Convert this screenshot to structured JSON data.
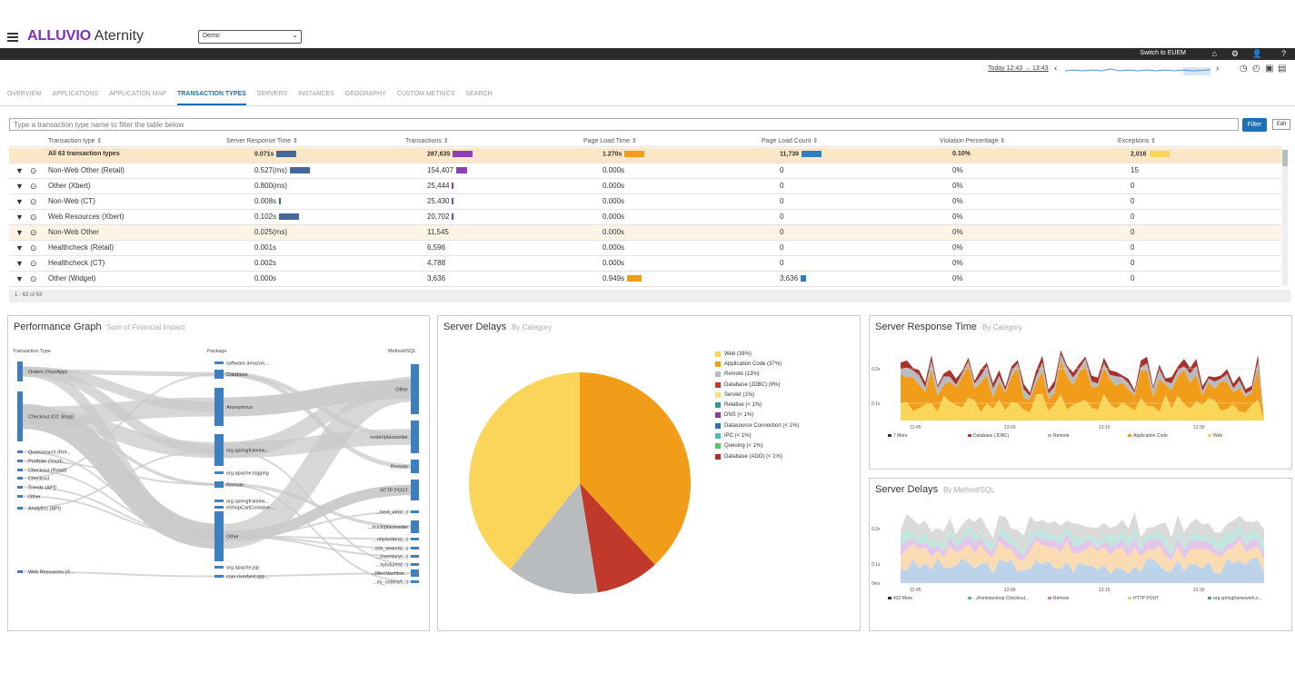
{
  "app": {
    "brand_a": "ALLUVIO",
    "brand_b": "Aternity",
    "env": "Demo"
  },
  "bar": {
    "switch": "Switch to EUEM"
  },
  "timeline": {
    "range": "Today 12:43 → 13:43"
  },
  "tabs": [
    "OVERVIEW",
    "APPLICATIONS",
    "APPLICATION MAP",
    "TRANSACTION TYPES",
    "SERVERS",
    "INSTANCES",
    "GEOGRAPHY",
    "CUSTOM METRICS",
    "SEARCH"
  ],
  "active_tab": "TRANSACTION TYPES",
  "filter": {
    "placeholder": "Type a transaction type name to filter the table below",
    "button": "Filter",
    "edit": "Edit"
  },
  "table": {
    "headers": [
      "Transaction type ⇕",
      "Server Response Time ⇕",
      "Transactions ⇕",
      "Page Load Time ⇕",
      "Page Load Count ⇕",
      "Violation Percentage ⇕",
      "Exceptions ⇕"
    ],
    "total": {
      "name": "All 63 transaction types",
      "srt": "0.071s",
      "tx": "287,635",
      "plt": "1.270s",
      "plc": "11,739",
      "vp": "0.10%",
      "ex": "2,016"
    },
    "rows": [
      {
        "name": "Non-Web Other (Retail)",
        "srt": "0.527(ms)",
        "tx": "154,407",
        "plt": "0.000s",
        "plc": "0",
        "vp": "0%",
        "ex": "15"
      },
      {
        "name": "Other (Xbert)",
        "srt": "0.800(ms)",
        "tx": "25,444",
        "plt": "0.000s",
        "plc": "0",
        "vp": "0%",
        "ex": "0"
      },
      {
        "name": "Non-Web (CT)",
        "srt": "0.008s",
        "tx": "25,430",
        "plt": "0.000s",
        "plc": "0",
        "vp": "0%",
        "ex": "0"
      },
      {
        "name": "Web Resources (Xbert)",
        "srt": "0.102s",
        "tx": "20,702",
        "plt": "0.000s",
        "plc": "0",
        "vp": "0%",
        "ex": "0"
      },
      {
        "name": "Non-Web Other",
        "srt": "0.025(ms)",
        "tx": "11,545",
        "plt": "0.000s",
        "plc": "0",
        "vp": "0%",
        "ex": "0"
      },
      {
        "name": "Healthcheck (Retail)",
        "srt": "0.001s",
        "tx": "6,596",
        "plt": "0.000s",
        "plc": "0",
        "vp": "0%",
        "ex": "0"
      },
      {
        "name": "Healthcheck (CT)",
        "srt": "0.002s",
        "tx": "4,788",
        "plt": "0.000s",
        "plc": "0",
        "vp": "0%",
        "ex": "0"
      },
      {
        "name": "Other (Widget)",
        "srt": "0.000s",
        "tx": "3,636",
        "plt": "0.949s",
        "plc": "3,636",
        "vp": "0%",
        "ex": "0"
      }
    ],
    "footer": "1 - 63 of 63"
  },
  "perf": {
    "title": "Performance Graph",
    "sub": "Sum of Financial Impact",
    "col1": "Transaction Type",
    "col2": "Package",
    "col3": "Method/SQL",
    "left": [
      "Orders (YourApp)",
      "Checkout (O1 Shop)",
      "Quicksearch (Ret...",
      "Portfolio (Yourb...",
      "Checkout (Retail)",
      "Checkout",
      "Trends (API)",
      "Other",
      "Analytics (API)",
      "Web Resources (X..."
    ],
    "mid": [
      "software.amazon....",
      "Database",
      "Anonymous",
      "org.springframew...",
      "org.apache.logging",
      "Remote",
      "org.springframew...",
      "eShopCartContaine...",
      "Other",
      "org.apache.jsp",
      "com.riverbed.app..."
    ],
    "right": [
      "Other",
      "/order/placeorder",
      "Remote",
      "HTTP POST",
      "...hent_info(...)",
      "...truck/placeorder",
      "...nity/orders(...)",
      "...ock_search(...)",
      "...inventory(...)",
      "...ityfutures(...)",
      "...filter/dashbor...",
      "...ity_orders/(...)"
    ]
  },
  "delays": {
    "title": "Server Delays",
    "sub": "By Category",
    "legend": [
      "Web (38%)",
      "Application Code (37%)",
      "Remote (13%)",
      "Database (JDBC) (9%)",
      "Servlet (1%)",
      "Relative (< 1%)",
      "DNS (< 1%)",
      "Datasource Connection (< 1%)",
      "IPC (< 1%)",
      "Queuing (< 1%)",
      "Database (ADO) (< 1%)"
    ],
    "colors": [
      "#fbd55a",
      "#f29d1a",
      "#b9bcbf",
      "#c0392b",
      "#f8e27a",
      "#2e9e8f",
      "#8e3a9c",
      "#2f6fb0",
      "#4fbfae",
      "#55c36a",
      "#a83232"
    ]
  },
  "srt": {
    "title": "Server Response Time",
    "sub": "By Category",
    "y": [
      "0.2s",
      "0.1s"
    ],
    "x": [
      "12:45",
      "13:00",
      "13:15",
      "13:30"
    ],
    "legend": [
      "7 More",
      "Database (JDBC)",
      "Remote",
      "Application Code",
      "Web"
    ]
  },
  "sd": {
    "title": "Server Delays",
    "sub": "By Method/SQL",
    "y": [
      "0.2s",
      "0.1s",
      "0ms"
    ],
    "x": [
      "12:45",
      "13:00",
      "13:15",
      "13:30"
    ],
    "legend": [
      "432 More",
      "...ifrontstarshop.Checkout...",
      "Remote",
      "HTTP POST",
      "org.springframework.s..."
    ]
  }
}
